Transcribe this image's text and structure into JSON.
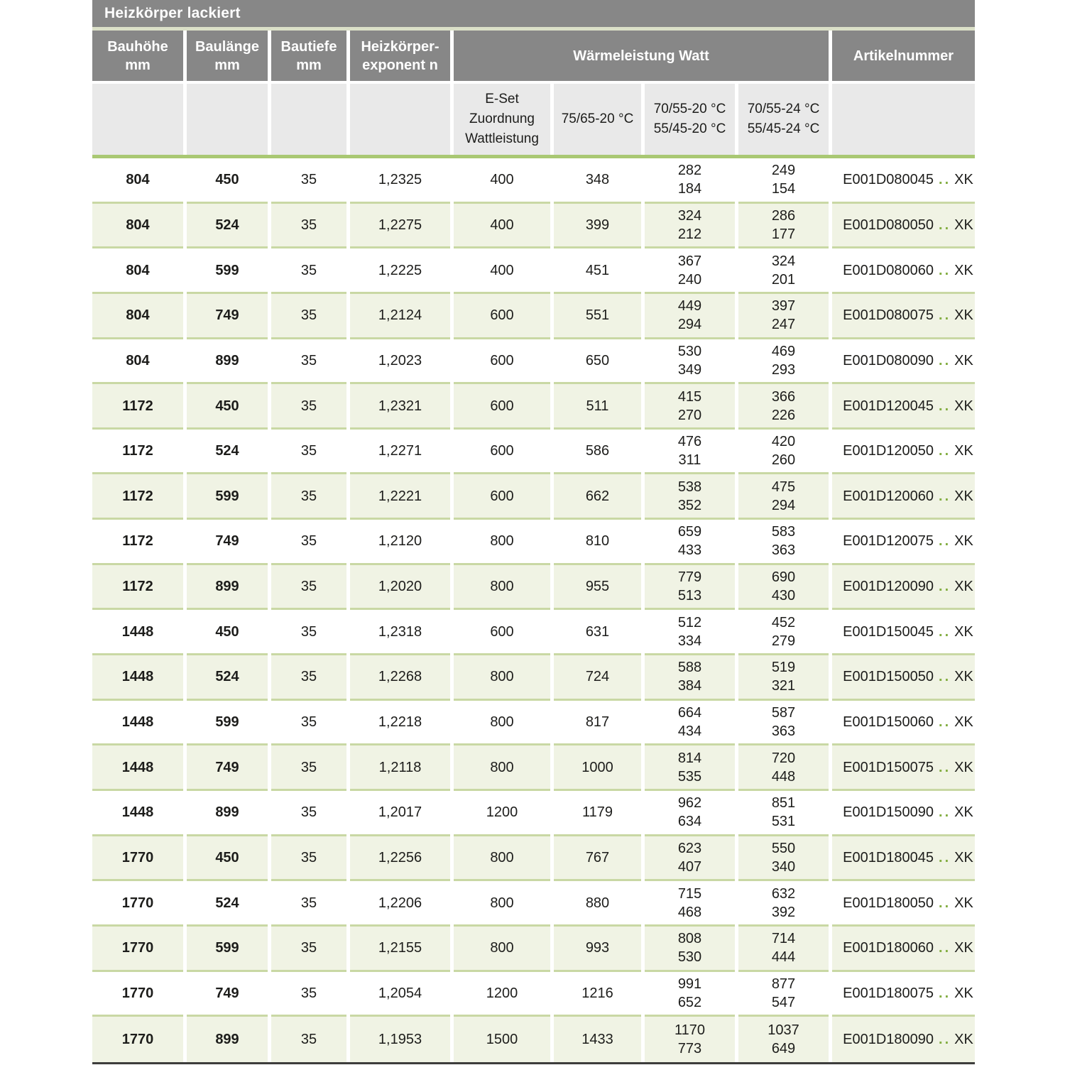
{
  "table": {
    "title": "Heizkörper lackiert",
    "header": {
      "bauhoehe": [
        "Bauhöhe",
        "mm"
      ],
      "baulaenge": [
        "Baulänge",
        "mm"
      ],
      "bautiefe": [
        "Bautiefe",
        "mm"
      ],
      "exponent": [
        "Heizkörper-",
        "exponent n"
      ],
      "waermeleistung": "Wärmeleistung Watt",
      "artikelnummer": "Artikelnummer"
    },
    "subheader": {
      "eset": [
        "E-Set",
        "Zuordnung",
        "Wattleistung"
      ],
      "t7565": "75/65-20 °C",
      "t7055_20": [
        "70/55-20 °C",
        "55/45-20 °C"
      ],
      "t7055_24": [
        "70/55-24 °C",
        "55/45-24 °C"
      ]
    },
    "artikel_dots": "..",
    "colors": {
      "header_grey": "#878787",
      "subheader_grey": "#e9e9e9",
      "row_alt_green": "#f0f3e4",
      "hairline_green": "#c9d8a4",
      "band_green": "#a9c873",
      "dot_green": "#84ae43",
      "bottom_bar": "#3c3c3b"
    },
    "rows": [
      {
        "bauhoehe": "804",
        "baulaenge": "450",
        "bautiefe": "35",
        "exponent": "1,2325",
        "eset": "400",
        "w7565": "348",
        "w7055_20": [
          "282",
          "184"
        ],
        "w7055_24": [
          "249",
          "154"
        ],
        "artikel": "E001D080045",
        "artikel_suffix": "XK"
      },
      {
        "bauhoehe": "804",
        "baulaenge": "524",
        "bautiefe": "35",
        "exponent": "1,2275",
        "eset": "400",
        "w7565": "399",
        "w7055_20": [
          "324",
          "212"
        ],
        "w7055_24": [
          "286",
          "177"
        ],
        "artikel": "E001D080050",
        "artikel_suffix": "XK"
      },
      {
        "bauhoehe": "804",
        "baulaenge": "599",
        "bautiefe": "35",
        "exponent": "1,2225",
        "eset": "400",
        "w7565": "451",
        "w7055_20": [
          "367",
          "240"
        ],
        "w7055_24": [
          "324",
          "201"
        ],
        "artikel": "E001D080060",
        "artikel_suffix": "XK"
      },
      {
        "bauhoehe": "804",
        "baulaenge": "749",
        "bautiefe": "35",
        "exponent": "1,2124",
        "eset": "600",
        "w7565": "551",
        "w7055_20": [
          "449",
          "294"
        ],
        "w7055_24": [
          "397",
          "247"
        ],
        "artikel": "E001D080075",
        "artikel_suffix": "XK"
      },
      {
        "bauhoehe": "804",
        "baulaenge": "899",
        "bautiefe": "35",
        "exponent": "1,2023",
        "eset": "600",
        "w7565": "650",
        "w7055_20": [
          "530",
          "349"
        ],
        "w7055_24": [
          "469",
          "293"
        ],
        "artikel": "E001D080090",
        "artikel_suffix": "XK"
      },
      {
        "bauhoehe": "1172",
        "baulaenge": "450",
        "bautiefe": "35",
        "exponent": "1,2321",
        "eset": "600",
        "w7565": "511",
        "w7055_20": [
          "415",
          "270"
        ],
        "w7055_24": [
          "366",
          "226"
        ],
        "artikel": "E001D120045",
        "artikel_suffix": "XK"
      },
      {
        "bauhoehe": "1172",
        "baulaenge": "524",
        "bautiefe": "35",
        "exponent": "1,2271",
        "eset": "600",
        "w7565": "586",
        "w7055_20": [
          "476",
          "311"
        ],
        "w7055_24": [
          "420",
          "260"
        ],
        "artikel": "E001D120050",
        "artikel_suffix": "XK"
      },
      {
        "bauhoehe": "1172",
        "baulaenge": "599",
        "bautiefe": "35",
        "exponent": "1,2221",
        "eset": "600",
        "w7565": "662",
        "w7055_20": [
          "538",
          "352"
        ],
        "w7055_24": [
          "475",
          "294"
        ],
        "artikel": "E001D120060",
        "artikel_suffix": "XK"
      },
      {
        "bauhoehe": "1172",
        "baulaenge": "749",
        "bautiefe": "35",
        "exponent": "1,2120",
        "eset": "800",
        "w7565": "810",
        "w7055_20": [
          "659",
          "433"
        ],
        "w7055_24": [
          "583",
          "363"
        ],
        "artikel": "E001D120075",
        "artikel_suffix": "XK"
      },
      {
        "bauhoehe": "1172",
        "baulaenge": "899",
        "bautiefe": "35",
        "exponent": "1,2020",
        "eset": "800",
        "w7565": "955",
        "w7055_20": [
          "779",
          "513"
        ],
        "w7055_24": [
          "690",
          "430"
        ],
        "artikel": "E001D120090",
        "artikel_suffix": "XK"
      },
      {
        "bauhoehe": "1448",
        "baulaenge": "450",
        "bautiefe": "35",
        "exponent": "1,2318",
        "eset": "600",
        "w7565": "631",
        "w7055_20": [
          "512",
          "334"
        ],
        "w7055_24": [
          "452",
          "279"
        ],
        "artikel": "E001D150045",
        "artikel_suffix": "XK"
      },
      {
        "bauhoehe": "1448",
        "baulaenge": "524",
        "bautiefe": "35",
        "exponent": "1,2268",
        "eset": "800",
        "w7565": "724",
        "w7055_20": [
          "588",
          "384"
        ],
        "w7055_24": [
          "519",
          "321"
        ],
        "artikel": "E001D150050",
        "artikel_suffix": "XK"
      },
      {
        "bauhoehe": "1448",
        "baulaenge": "599",
        "bautiefe": "35",
        "exponent": "1,2218",
        "eset": "800",
        "w7565": "817",
        "w7055_20": [
          "664",
          "434"
        ],
        "w7055_24": [
          "587",
          "363"
        ],
        "artikel": "E001D150060",
        "artikel_suffix": "XK"
      },
      {
        "bauhoehe": "1448",
        "baulaenge": "749",
        "bautiefe": "35",
        "exponent": "1,2118",
        "eset": "800",
        "w7565": "1000",
        "w7055_20": [
          "814",
          "535"
        ],
        "w7055_24": [
          "720",
          "448"
        ],
        "artikel": "E001D150075",
        "artikel_suffix": "XK"
      },
      {
        "bauhoehe": "1448",
        "baulaenge": "899",
        "bautiefe": "35",
        "exponent": "1,2017",
        "eset": "1200",
        "w7565": "1179",
        "w7055_20": [
          "962",
          "634"
        ],
        "w7055_24": [
          "851",
          "531"
        ],
        "artikel": "E001D150090",
        "artikel_suffix": "XK"
      },
      {
        "bauhoehe": "1770",
        "baulaenge": "450",
        "bautiefe": "35",
        "exponent": "1,2256",
        "eset": "800",
        "w7565": "767",
        "w7055_20": [
          "623",
          "407"
        ],
        "w7055_24": [
          "550",
          "340"
        ],
        "artikel": "E001D180045",
        "artikel_suffix": "XK"
      },
      {
        "bauhoehe": "1770",
        "baulaenge": "524",
        "bautiefe": "35",
        "exponent": "1,2206",
        "eset": "800",
        "w7565": "880",
        "w7055_20": [
          "715",
          "468"
        ],
        "w7055_24": [
          "632",
          "392"
        ],
        "artikel": "E001D180050",
        "artikel_suffix": "XK"
      },
      {
        "bauhoehe": "1770",
        "baulaenge": "599",
        "bautiefe": "35",
        "exponent": "1,2155",
        "eset": "800",
        "w7565": "993",
        "w7055_20": [
          "808",
          "530"
        ],
        "w7055_24": [
          "714",
          "444"
        ],
        "artikel": "E001D180060",
        "artikel_suffix": "XK"
      },
      {
        "bauhoehe": "1770",
        "baulaenge": "749",
        "bautiefe": "35",
        "exponent": "1,2054",
        "eset": "1200",
        "w7565": "1216",
        "w7055_20": [
          "991",
          "652"
        ],
        "w7055_24": [
          "877",
          "547"
        ],
        "artikel": "E001D180075",
        "artikel_suffix": "XK"
      },
      {
        "bauhoehe": "1770",
        "baulaenge": "899",
        "bautiefe": "35",
        "exponent": "1,1953",
        "eset": "1500",
        "w7565": "1433",
        "w7055_20": [
          "1170",
          "773"
        ],
        "w7055_24": [
          "1037",
          "649"
        ],
        "artikel": "E001D180090",
        "artikel_suffix": "XK"
      }
    ]
  }
}
